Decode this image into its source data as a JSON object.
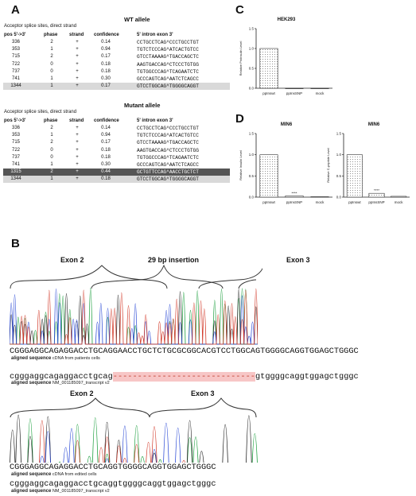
{
  "panels": {
    "A": "A",
    "B": "B",
    "C": "C",
    "D": "D"
  },
  "tableA": {
    "headers": [
      "pos 5'->3'",
      "phase",
      "strand",
      "confidence",
      "5'   intron   exon   3'"
    ],
    "wt": {
      "title": "WT allele",
      "subtitle": "Acceptor splice sites, direct strand",
      "rows": [
        [
          "336",
          "2",
          "+",
          "0.14",
          "CCTGCCTCAG^CCCTGCCTGT"
        ],
        [
          "353",
          "1",
          "+",
          "0.94",
          "TGTCTCCCAG^ATCACTGTCC"
        ],
        [
          "715",
          "2",
          "+",
          "0.17",
          "GTCCTAAAAG^TGACCAGCTC"
        ],
        [
          "722",
          "0",
          "+",
          "0.18",
          "AAGTGACCAG^CTCCCTGTGG"
        ],
        [
          "737",
          "0",
          "+",
          "0.18",
          "TGTGGCCCAG^TCAGAATCTC"
        ],
        [
          "741",
          "1",
          "+",
          "0.30",
          "GCCCAGTCAG^AATCTCAGCC"
        ],
        [
          "1344",
          "1",
          "+",
          "0.17",
          "GTCCTGGCAG^TGGGGCAGGT"
        ]
      ]
    },
    "mut": {
      "title": "Mutant allele",
      "subtitle": "Acceptor splice sites, direct strand",
      "rows": [
        [
          "336",
          "2",
          "+",
          "0.14",
          "CCTGCCTCAG^CCCTGCCTGT"
        ],
        [
          "353",
          "1",
          "+",
          "0.94",
          "TGTCTCCCAG^ATCACTGTCC"
        ],
        [
          "715",
          "2",
          "+",
          "0.17",
          "GTCCTAAAAG^TGACCAGCTC"
        ],
        [
          "722",
          "0",
          "+",
          "0.18",
          "AAGTGACCAG^CTCCCTGTGG"
        ],
        [
          "737",
          "0",
          "+",
          "0.18",
          "TGTGGCCCAG^TCAGAATCTC"
        ],
        [
          "741",
          "1",
          "+",
          "0.30",
          "GCCCAGTCAG^AATCTCAGCC"
        ],
        [
          "1315",
          "2",
          "+",
          "0.44",
          "GCTGTTCCAG^AACCTGCTCT"
        ],
        [
          "1344",
          "1",
          "+",
          "0.18",
          "GTCCTGGCAG^TGGGGCAGGT"
        ]
      ]
    }
  },
  "panelB": {
    "top": {
      "labels": [
        "Exon 2",
        "29 bp insertion",
        "Exon 3"
      ],
      "seq": "CGGGAGGCAGAGGACCTGCAGGAACCTGCTCTGCGCGGCACGTCCTGGCAGTGGGGCAGGTGGAGCTGGGC",
      "seq_label_bold": "aligned sequence",
      "seq_label": "cDNA from patients cells",
      "ref_left": "cgggaggcagaggacctgcag",
      "ref_gap": "-----------------------------",
      "ref_right": "gtggggcaggtggagctgggc",
      "ref_label_bold": "aligned sequence",
      "ref_label": "NM_001185097_transcript v2"
    },
    "bottom": {
      "labels": [
        "Exon 2",
        "Exon 3"
      ],
      "seq": "CGGGAGGCAGAGGACCTGCAGGTGGGGCAGGTGGAGCTGGGC",
      "seq_label_bold": "aligned sequence",
      "seq_label": "cDNA from edited cells",
      "ref": "cgggaggcagaggacctgcaggtggggcaggtggagctgggc",
      "ref_label_bold": "aligned sequence",
      "ref_label": "NM_001185097_transcript v2"
    }
  },
  "chart_data": [
    {
      "type": "bar",
      "title": "HEK293",
      "ylabel": "Relative Proinsulin Level",
      "categories": [
        "ppInswt",
        "ppInsSNP",
        "mock"
      ],
      "values": [
        1.0,
        0.0,
        0.0
      ],
      "ylim": [
        0,
        1.5
      ],
      "yticks": [
        "0.0",
        "0.5",
        "1.0",
        "1.5"
      ],
      "annotations": []
    },
    {
      "type": "bar",
      "title": "MIN6",
      "ylabel": "Relative Insulin Level",
      "categories": [
        "ppInswt",
        "ppInsSNP",
        "mock"
      ],
      "values": [
        1.0,
        0.03,
        0.01
      ],
      "ylim": [
        0,
        1.5
      ],
      "yticks": [
        "0.0",
        "0.5",
        "1.0",
        "1.5"
      ],
      "annotations": [
        "",
        "****",
        ""
      ]
    },
    {
      "type": "bar",
      "title": "MIN6",
      "ylabel": "Relative C-peptide Level",
      "categories": [
        "ppInswt",
        "ppInsSNP",
        "mock"
      ],
      "values": [
        1.0,
        0.09,
        0.02
      ],
      "ylim": [
        0,
        1.5
      ],
      "yticks": [
        "0.0",
        "0.5",
        "1.0",
        "1.5"
      ],
      "annotations": [
        "",
        "****",
        ""
      ]
    }
  ]
}
